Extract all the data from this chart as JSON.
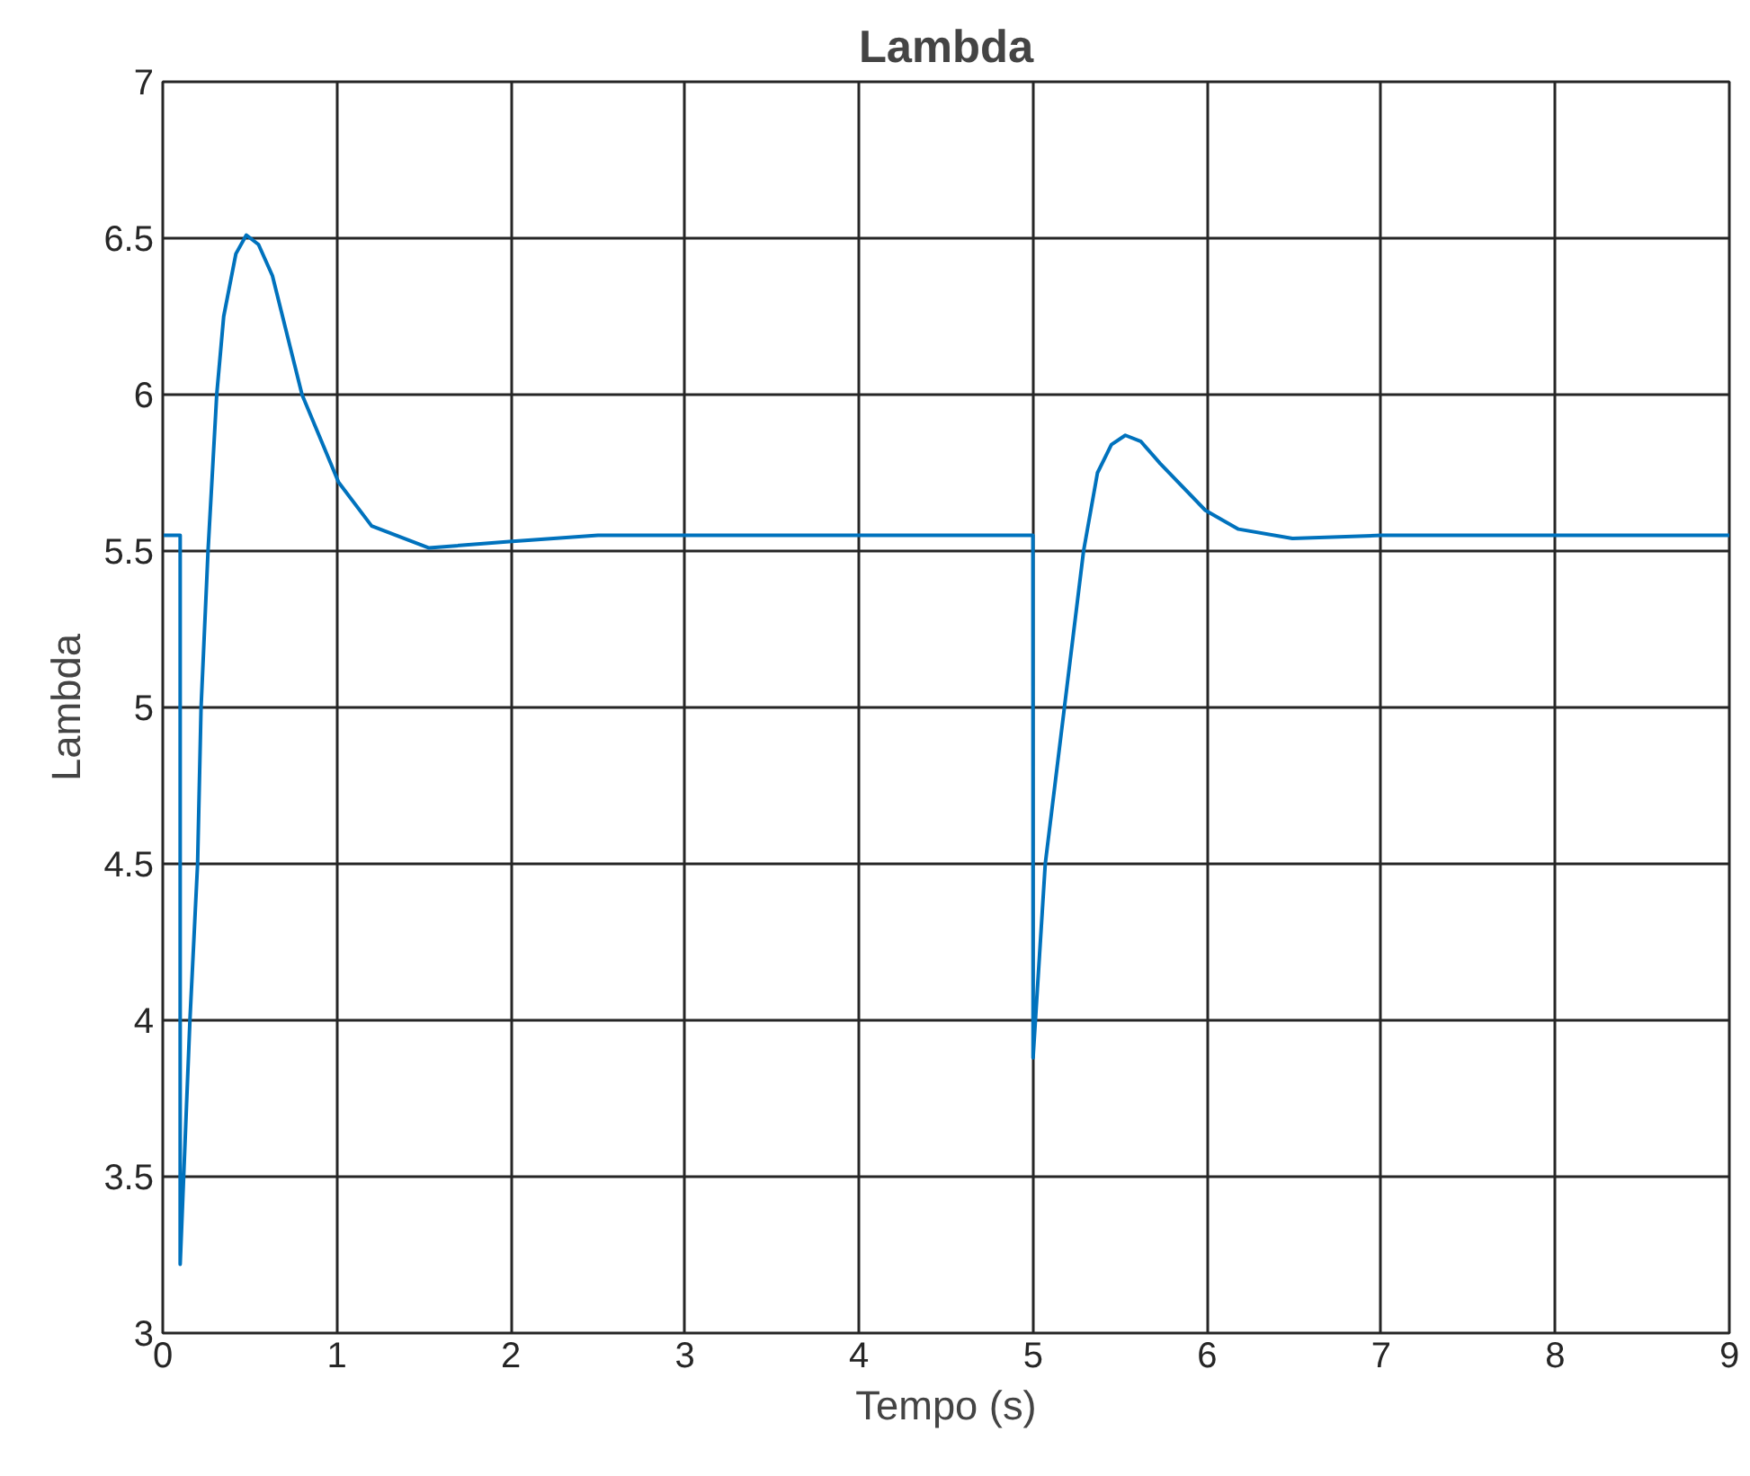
{
  "chart_data": {
    "type": "line",
    "title": "Lambda",
    "xlabel": "Tempo (s)",
    "ylabel": "Lambda",
    "xlim": [
      0,
      9
    ],
    "ylim": [
      3,
      7
    ],
    "xticks": [
      0,
      1,
      2,
      3,
      4,
      5,
      6,
      7,
      8,
      9
    ],
    "yticks": [
      3,
      3.5,
      4,
      4.5,
      5,
      5.5,
      6,
      6.5,
      7
    ],
    "grid": true,
    "marker": "none",
    "line_style": "solid",
    "series": [
      {
        "color": "#0072bd",
        "x": [
          0,
          0.1,
          0.1,
          0.156,
          0.2,
          0.22,
          0.26,
          0.31,
          0.35,
          0.42,
          0.48,
          0.55,
          0.63,
          0.8,
          1.01,
          1.2,
          1.53,
          1.99,
          2.5,
          3,
          4,
          4.999,
          5,
          5.07,
          5.18,
          5.29,
          5.37,
          5.45,
          5.53,
          5.62,
          5.73,
          5.99,
          6.18,
          6.49,
          7,
          8,
          9
        ],
        "values": [
          5.55,
          5.55,
          3.22,
          4.0,
          4.5,
          5.0,
          5.5,
          6.0,
          6.25,
          6.45,
          6.51,
          6.48,
          6.38,
          6.0,
          5.72,
          5.58,
          5.51,
          5.53,
          5.55,
          5.55,
          5.55,
          5.55,
          3.88,
          4.5,
          5.0,
          5.5,
          5.75,
          5.84,
          5.87,
          5.85,
          5.78,
          5.63,
          5.57,
          5.54,
          5.55,
          5.55,
          5.55
        ]
      }
    ]
  }
}
